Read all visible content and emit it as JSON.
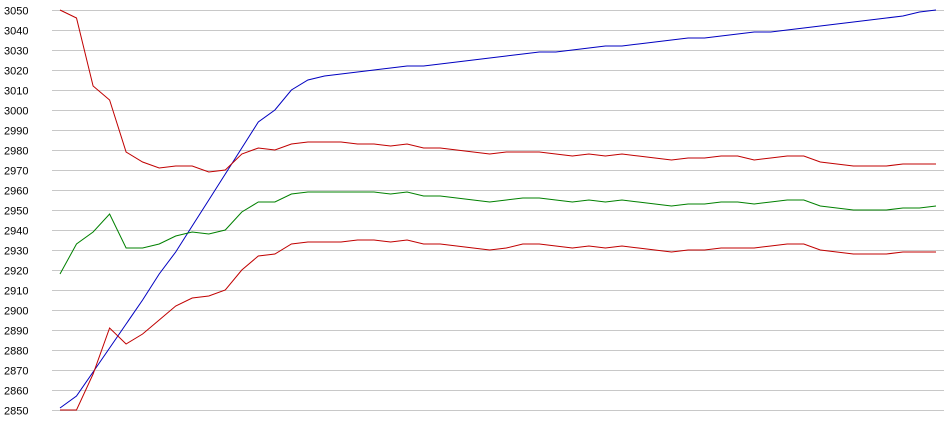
{
  "chart_data": {
    "type": "line",
    "title": "",
    "xlabel": "",
    "ylabel": "",
    "ylim": [
      2850,
      3050
    ],
    "yticks": [
      2850,
      2860,
      2870,
      2880,
      2890,
      2900,
      2910,
      2920,
      2930,
      2940,
      2950,
      2960,
      2970,
      2980,
      2990,
      3000,
      3010,
      3020,
      3030,
      3040,
      3050
    ],
    "grid": true,
    "legend": "none",
    "x": [
      1,
      2,
      3,
      4,
      5,
      6,
      7,
      8,
      9,
      10,
      11,
      12,
      13,
      14,
      15,
      16,
      17,
      18,
      19,
      20,
      21,
      22,
      23,
      24,
      25,
      26,
      27,
      28,
      29,
      30,
      31,
      32,
      33,
      34,
      35,
      36,
      37,
      38,
      39,
      40,
      41,
      42,
      43,
      44,
      45,
      46,
      47,
      48,
      49,
      50,
      51,
      52,
      53,
      54
    ],
    "series": [
      {
        "color": "#0000c0",
        "values": [
          2851,
          2857,
          2869,
          2881,
          2893,
          2905,
          2918,
          2929,
          2942,
          2955,
          2968,
          2981,
          2994,
          3000,
          3010,
          3015,
          3017,
          3018,
          3019,
          3020,
          3021,
          3022,
          3022,
          3023,
          3024,
          3025,
          3026,
          3027,
          3028,
          3029,
          3029,
          3030,
          3031,
          3032,
          3032,
          3033,
          3034,
          3035,
          3036,
          3036,
          3037,
          3038,
          3039,
          3039,
          3040,
          3041,
          3042,
          3043,
          3044,
          3045,
          3046,
          3047,
          3049,
          3050
        ]
      },
      {
        "color": "#c00000",
        "values": [
          3050,
          3046,
          3012,
          3005,
          2979,
          2974,
          2971,
          2972,
          2972,
          2969,
          2970,
          2978,
          2981,
          2980,
          2983,
          2984,
          2984,
          2984,
          2983,
          2983,
          2982,
          2983,
          2981,
          2981,
          2980,
          2979,
          2978,
          2979,
          2979,
          2979,
          2978,
          2977,
          2978,
          2977,
          2978,
          2977,
          2976,
          2975,
          2976,
          2976,
          2977,
          2977,
          2975,
          2976,
          2977,
          2977,
          2974,
          2973,
          2972,
          2972,
          2972,
          2973,
          2973,
          2973
        ]
      },
      {
        "color": "#008000",
        "values": [
          2918,
          2933,
          2939,
          2948,
          2931,
          2931,
          2933,
          2937,
          2939,
          2938,
          2940,
          2949,
          2954,
          2954,
          2958,
          2959,
          2959,
          2959,
          2959,
          2959,
          2958,
          2959,
          2957,
          2957,
          2956,
          2955,
          2954,
          2955,
          2956,
          2956,
          2955,
          2954,
          2955,
          2954,
          2955,
          2954,
          2953,
          2952,
          2953,
          2953,
          2954,
          2954,
          2953,
          2954,
          2955,
          2955,
          2952,
          2951,
          2950,
          2950,
          2950,
          2951,
          2951,
          2952
        ]
      },
      {
        "color": "#c00000",
        "values": [
          2850,
          2850,
          2868,
          2891,
          2883,
          2888,
          2895,
          2902,
          2906,
          2907,
          2910,
          2920,
          2927,
          2928,
          2933,
          2934,
          2934,
          2934,
          2935,
          2935,
          2934,
          2935,
          2933,
          2933,
          2932,
          2931,
          2930,
          2931,
          2933,
          2933,
          2932,
          2931,
          2932,
          2931,
          2932,
          2931,
          2930,
          2929,
          2930,
          2930,
          2931,
          2931,
          2931,
          2932,
          2933,
          2933,
          2930,
          2929,
          2928,
          2928,
          2928,
          2929,
          2929,
          2929
        ]
      }
    ]
  }
}
